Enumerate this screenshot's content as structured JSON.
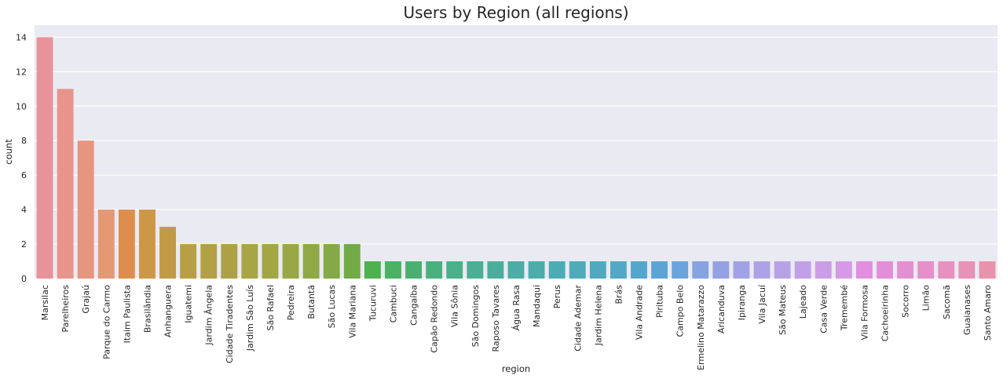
{
  "chart_data": {
    "type": "bar",
    "title": "Users by Region (all regions)",
    "xlabel": "region",
    "ylabel": "count",
    "ylim": [
      0,
      14.7
    ],
    "yticks": [
      0,
      2,
      4,
      6,
      8,
      10,
      12,
      14
    ],
    "grid": true,
    "background": "#eaeaf2",
    "categories": [
      "Marsilac",
      "Parelheiros",
      "Grajaú",
      "Parque do Carmo",
      "Itaim Paulista",
      "Brasilândia",
      "Anhanguera",
      "Iguatemi",
      "Jardim Ângela",
      "Cidade Tiradentes",
      "Jardim São Luís",
      "São Rafael",
      "Pedreira",
      "Butantã",
      "São Lucas",
      "Vila Mariana",
      "Tucuruvi",
      "Cambuci",
      "Cangaíba",
      "Capão Redondo",
      "Vila Sônia",
      "São Domingos",
      "Raposo Tavares",
      "Água Rasa",
      "Mandaqui",
      "Perus",
      "Cidade Ademar",
      "Jardim Helena",
      "Brás",
      "Vila Andrade",
      "Pirituba",
      "Campo Belo",
      "Ermelino Matarazzo",
      "Aricanduva",
      "Ipiranga",
      "Vila Jacuí",
      "São Mateus",
      "Lajeado",
      "Casa Verde",
      "Tremembé",
      "Vila Formosa",
      "Cachoeirinha",
      "Socorro",
      "Limão",
      "Sacomã",
      "Guaianases",
      "Santo Amaro"
    ],
    "values": [
      14,
      11,
      8,
      4,
      4,
      4,
      3,
      2,
      2,
      2,
      2,
      2,
      2,
      2,
      2,
      2,
      1,
      1,
      1,
      1,
      1,
      1,
      1,
      1,
      1,
      1,
      1,
      1,
      1,
      1,
      1,
      1,
      1,
      1,
      1,
      1,
      1,
      1,
      1,
      1,
      1,
      1,
      1,
      1,
      1,
      1,
      1
    ],
    "colors": [
      "#e8929a",
      "#e8948a",
      "#e6957f",
      "#e39974",
      "#dd8e4e",
      "#cc9747",
      "#c29a46",
      "#b89f45",
      "#b3a044",
      "#aca245",
      "#a7a545",
      "#a2a744",
      "#99a844",
      "#8fa945",
      "#84aa45",
      "#72ab45",
      "#4eb04f",
      "#4ab262",
      "#4ab070",
      "#4ab07d",
      "#4ab089",
      "#4aaf93",
      "#4aae9c",
      "#4bada5",
      "#4cacac",
      "#4cacb3",
      "#4eabb9",
      "#50a9bf",
      "#53a8c6",
      "#55a6cd",
      "#5ba4d5",
      "#6ba3dd",
      "#86a2e1",
      "#94a2e3",
      "#a1a2e5",
      "#aea2e6",
      "#b8a2e7",
      "#c2a0e8",
      "#cc9de7",
      "#d699e5",
      "#e28ee1",
      "#e38fd8",
      "#e490d0",
      "#e590c8",
      "#e691c0",
      "#e792b6",
      "#e893ad"
    ]
  }
}
